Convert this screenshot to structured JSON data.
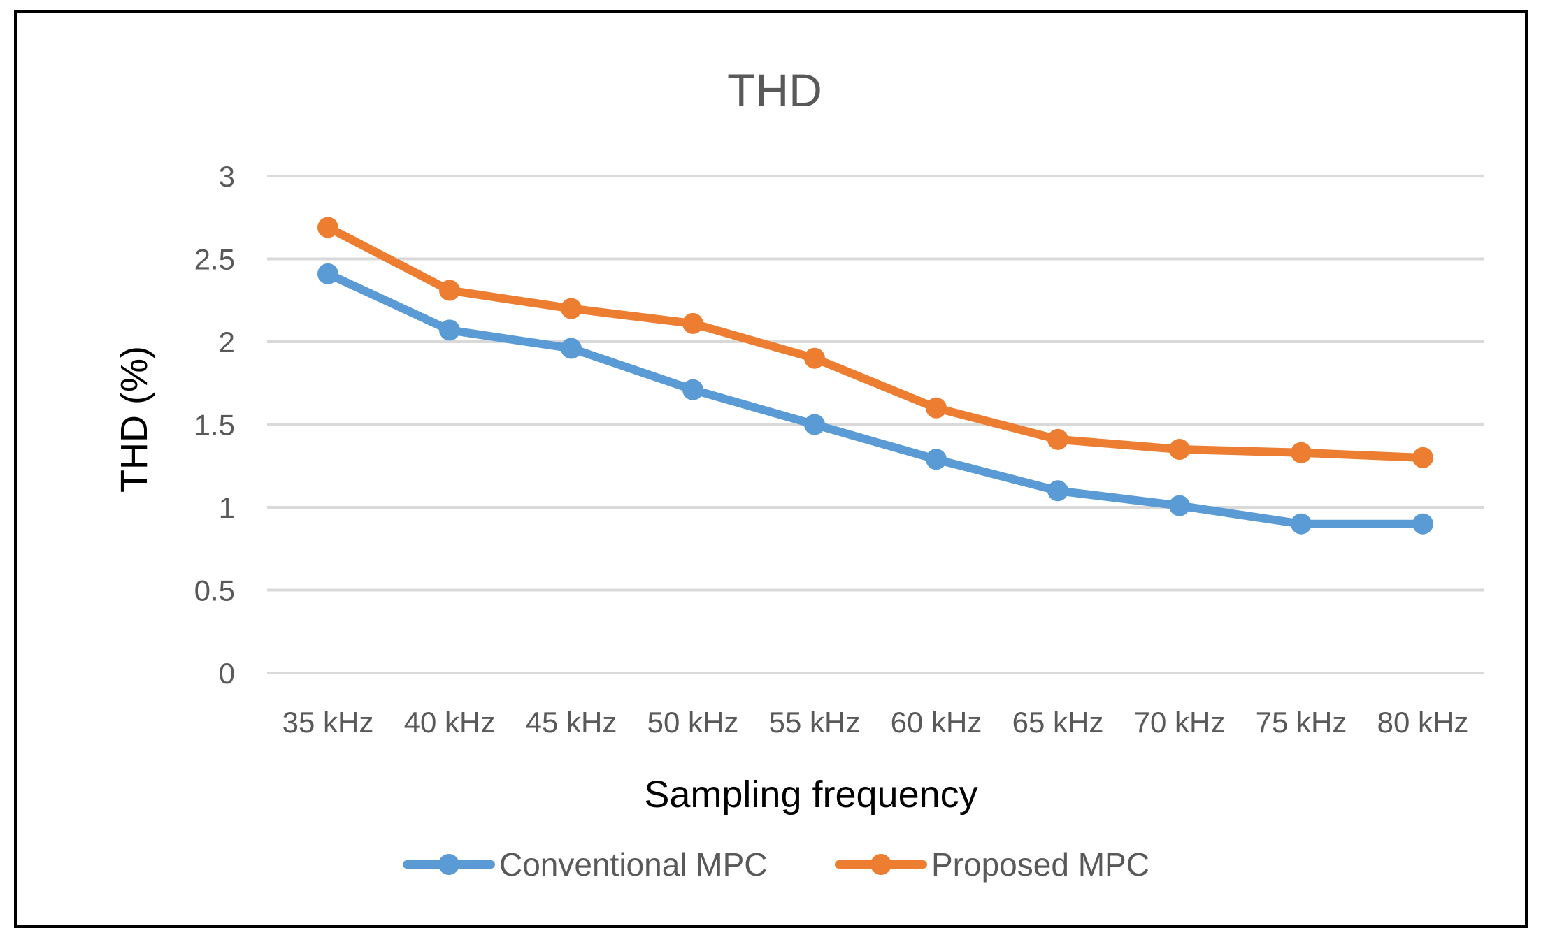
{
  "chart_data": {
    "type": "line",
    "title": "THD",
    "xlabel": "Sampling frequency",
    "ylabel": "THD (%)",
    "categories": [
      "35 kHz",
      "40 kHz",
      "45 kHz",
      "50 kHz",
      "55 kHz",
      "60 kHz",
      "65 kHz",
      "70 kHz",
      "75 kHz",
      "80 kHz"
    ],
    "ylim": [
      0,
      3
    ],
    "yticks": [
      "0",
      "0.5",
      "1",
      "1.5",
      "2",
      "2.5",
      "3"
    ],
    "grid": true,
    "legend_position": "bottom",
    "series": [
      {
        "name": "Conventional MPC",
        "color": "#5b9bd5",
        "values": [
          2.41,
          2.07,
          1.96,
          1.71,
          1.5,
          1.29,
          1.1,
          1.01,
          0.9,
          0.9
        ]
      },
      {
        "name": "Proposed MPC",
        "color": "#ed7d31",
        "values": [
          2.69,
          2.31,
          2.2,
          2.11,
          1.9,
          1.6,
          1.41,
          1.35,
          1.33,
          1.3
        ]
      }
    ]
  }
}
